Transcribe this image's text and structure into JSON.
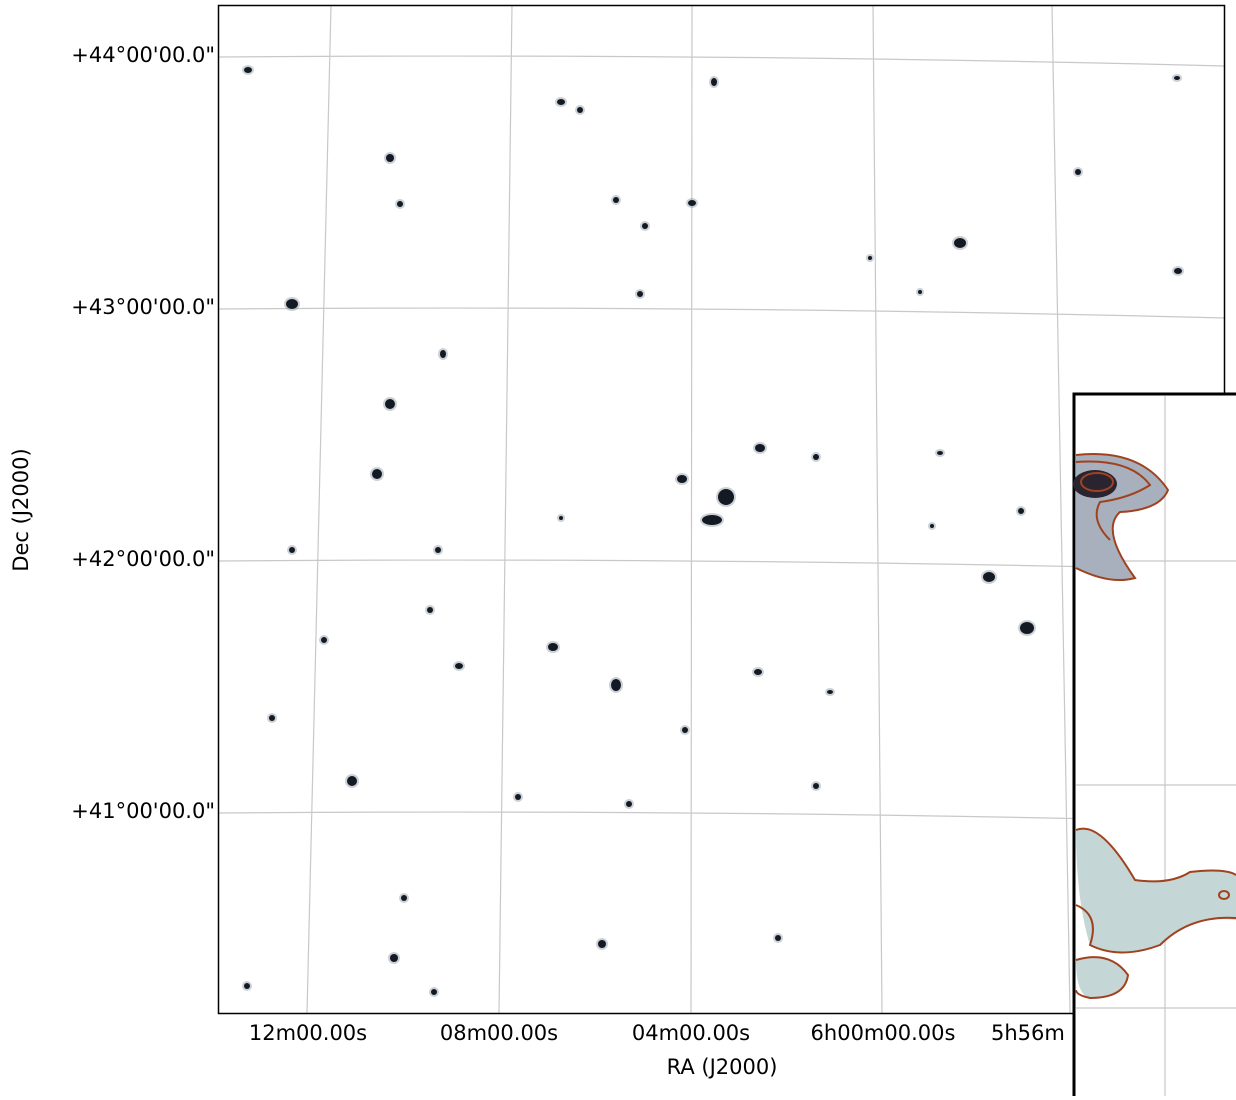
{
  "figure": {
    "x_label": "RA (J2000)",
    "y_label": "Dec (J2000)",
    "x_tick_labels": [
      "12m00.00s",
      "08m00.00s",
      "04m00.00s",
      "6h00m00.00s",
      "5h56m"
    ],
    "y_tick_labels": [
      "+44°00'00.0\"",
      "+43°00'00.0\"",
      "+42°00'00.0\"",
      "+41°00'00.0\""
    ]
  }
}
